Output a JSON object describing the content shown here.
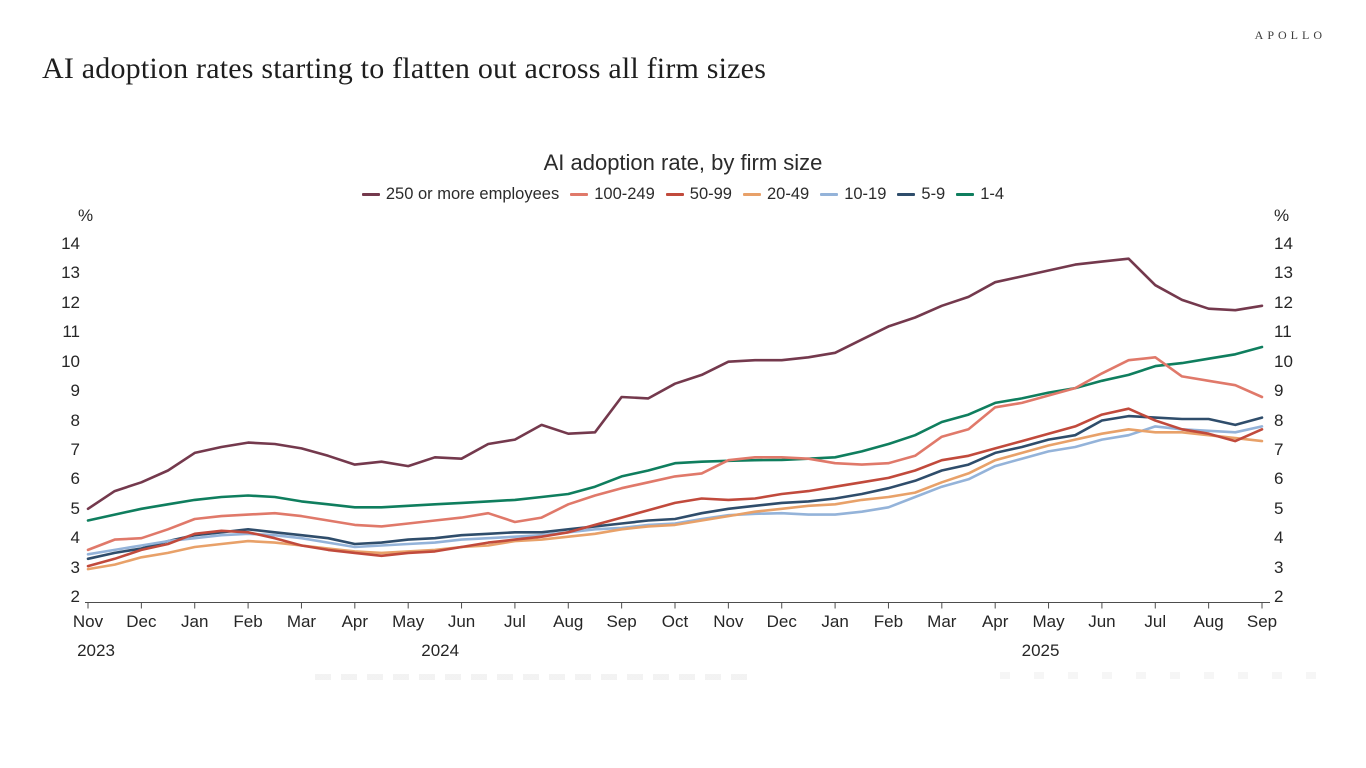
{
  "brand": "APOLLO",
  "page_title": "AI adoption rates starting to flatten out across all firm sizes",
  "chart_data": {
    "type": "line",
    "title": "AI adoption rate, by firm size",
    "unit": "%",
    "grid": false,
    "legend_position": "top",
    "ylim": [
      2,
      14
    ],
    "yticks": [
      2,
      3,
      4,
      5,
      6,
      7,
      8,
      9,
      10,
      11,
      12,
      13,
      14
    ],
    "points_per_month": 2,
    "x_month_labels": [
      "Nov",
      "Dec",
      "Jan",
      "Feb",
      "Mar",
      "Apr",
      "May",
      "Jun",
      "Jul",
      "Aug",
      "Sep",
      "Oct",
      "Nov",
      "Dec",
      "Jan",
      "Feb",
      "Mar",
      "Apr",
      "May",
      "Jun",
      "Jul",
      "Aug",
      "Sep"
    ],
    "year_labels": [
      {
        "label": "2023",
        "month_offset": 0.15
      },
      {
        "label": "2024",
        "month_offset": 6.6
      },
      {
        "label": "2025",
        "month_offset": 17.85
      }
    ],
    "series": [
      {
        "name": "250 or more employees",
        "color": "#74394d",
        "values": [
          5.0,
          5.6,
          5.9,
          6.3,
          6.9,
          7.1,
          7.25,
          7.2,
          7.05,
          6.8,
          6.5,
          6.6,
          6.45,
          6.75,
          6.7,
          7.2,
          7.35,
          7.85,
          7.55,
          7.6,
          8.8,
          8.75,
          9.25,
          9.55,
          10.0,
          10.05,
          10.05,
          10.15,
          10.3,
          10.75,
          11.2,
          11.5,
          11.9,
          12.2,
          12.7,
          12.9,
          13.1,
          13.3,
          13.4,
          13.5,
          12.6,
          12.1,
          11.8,
          11.75,
          11.9
        ]
      },
      {
        "name": "100-249",
        "color": "#e0796a",
        "values": [
          3.6,
          3.95,
          4.0,
          4.3,
          4.65,
          4.75,
          4.8,
          4.85,
          4.75,
          4.6,
          4.45,
          4.4,
          4.5,
          4.6,
          4.7,
          4.85,
          4.55,
          4.7,
          5.15,
          5.45,
          5.7,
          5.9,
          6.1,
          6.2,
          6.65,
          6.75,
          6.75,
          6.7,
          6.55,
          6.5,
          6.55,
          6.8,
          7.45,
          7.7,
          8.45,
          8.6,
          8.85,
          9.1,
          9.6,
          10.05,
          10.15,
          9.5,
          9.35,
          9.2,
          8.8
        ]
      },
      {
        "name": "50-99",
        "color": "#c14a3c",
        "values": [
          3.05,
          3.3,
          3.6,
          3.8,
          4.15,
          4.25,
          4.2,
          4.0,
          3.75,
          3.6,
          3.5,
          3.4,
          3.5,
          3.55,
          3.7,
          3.85,
          3.95,
          4.05,
          4.2,
          4.45,
          4.7,
          4.95,
          5.2,
          5.35,
          5.3,
          5.35,
          5.5,
          5.6,
          5.75,
          5.9,
          6.05,
          6.3,
          6.65,
          6.8,
          7.05,
          7.3,
          7.55,
          7.8,
          8.2,
          8.4,
          8.0,
          7.7,
          7.55,
          7.3,
          7.7
        ]
      },
      {
        "name": "20-49",
        "color": "#e8a169",
        "values": [
          2.95,
          3.1,
          3.35,
          3.5,
          3.7,
          3.8,
          3.9,
          3.85,
          3.75,
          3.65,
          3.55,
          3.5,
          3.55,
          3.6,
          3.7,
          3.75,
          3.9,
          3.95,
          4.05,
          4.15,
          4.3,
          4.4,
          4.45,
          4.6,
          4.75,
          4.9,
          5.0,
          5.1,
          5.15,
          5.3,
          5.4,
          5.55,
          5.9,
          6.2,
          6.65,
          6.9,
          7.15,
          7.35,
          7.55,
          7.7,
          7.6,
          7.6,
          7.5,
          7.4,
          7.3
        ]
      },
      {
        "name": "10-19",
        "color": "#94b3d9",
        "values": [
          3.45,
          3.6,
          3.75,
          3.9,
          4.0,
          4.1,
          4.15,
          4.1,
          4.0,
          3.85,
          3.7,
          3.75,
          3.8,
          3.85,
          3.95,
          4.0,
          4.05,
          4.1,
          4.2,
          4.3,
          4.35,
          4.45,
          4.5,
          4.65,
          4.78,
          4.83,
          4.85,
          4.8,
          4.8,
          4.9,
          5.05,
          5.4,
          5.75,
          6.0,
          6.45,
          6.7,
          6.95,
          7.1,
          7.35,
          7.5,
          7.8,
          7.7,
          7.65,
          7.6,
          7.8
        ]
      },
      {
        "name": "5-9",
        "color": "#2f4d6b",
        "values": [
          3.3,
          3.5,
          3.65,
          3.9,
          4.1,
          4.2,
          4.3,
          4.2,
          4.1,
          4.0,
          3.8,
          3.85,
          3.95,
          4.0,
          4.1,
          4.15,
          4.2,
          4.2,
          4.3,
          4.4,
          4.5,
          4.6,
          4.65,
          4.85,
          5.0,
          5.1,
          5.2,
          5.25,
          5.35,
          5.5,
          5.7,
          5.95,
          6.3,
          6.5,
          6.9,
          7.1,
          7.35,
          7.5,
          8.0,
          8.15,
          8.1,
          8.05,
          8.05,
          7.85,
          8.1
        ]
      },
      {
        "name": "1-4",
        "color": "#0f7e5e",
        "values": [
          4.6,
          4.8,
          5.0,
          5.15,
          5.3,
          5.4,
          5.45,
          5.4,
          5.25,
          5.15,
          5.05,
          5.05,
          5.1,
          5.15,
          5.2,
          5.25,
          5.3,
          5.4,
          5.5,
          5.75,
          6.1,
          6.3,
          6.55,
          6.6,
          6.63,
          6.65,
          6.66,
          6.7,
          6.75,
          6.95,
          7.2,
          7.5,
          7.95,
          8.2,
          8.6,
          8.75,
          8.95,
          9.1,
          9.35,
          9.55,
          9.85,
          9.95,
          10.1,
          10.25,
          10.5
        ]
      }
    ]
  }
}
